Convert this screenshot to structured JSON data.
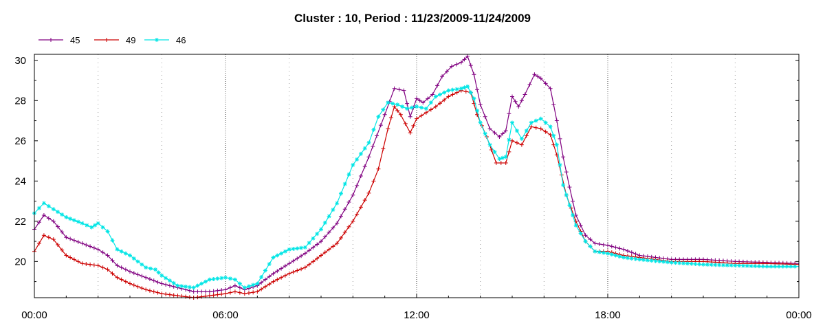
{
  "chart_data": {
    "type": "line",
    "title": "Cluster : 10, Period : 11/23/2009-11/24/2009",
    "xlabel": "",
    "ylabel": "",
    "x_ticks": [
      "00:00",
      "06:00",
      "12:00",
      "18:00",
      "00:00"
    ],
    "y_ticks": [
      "20",
      "22",
      "24",
      "26",
      "28",
      "30"
    ],
    "xlim": [
      0,
      24
    ],
    "ylim": [
      18.2,
      30.3
    ],
    "grid": "vertical dotted lines every 2 hours",
    "legend_position": "top-left",
    "series": [
      {
        "name": "45",
        "color": "#800080",
        "marker": "plus",
        "points": [
          [
            0,
            21.6
          ],
          [
            0.3,
            22.3
          ],
          [
            0.6,
            22
          ],
          [
            1,
            21.2
          ],
          [
            1.5,
            20.9
          ],
          [
            2,
            20.6
          ],
          [
            2.3,
            20.3
          ],
          [
            2.6,
            19.8
          ],
          [
            3,
            19.5
          ],
          [
            3.5,
            19.2
          ],
          [
            4,
            18.9
          ],
          [
            4.5,
            18.7
          ],
          [
            5,
            18.5
          ],
          [
            5.5,
            18.5
          ],
          [
            6,
            18.6
          ],
          [
            6.3,
            18.8
          ],
          [
            6.6,
            18.6
          ],
          [
            7,
            18.8
          ],
          [
            7.5,
            19.4
          ],
          [
            8,
            19.9
          ],
          [
            8.5,
            20.4
          ],
          [
            9,
            21
          ],
          [
            9.5,
            21.9
          ],
          [
            10,
            23.3
          ],
          [
            10.5,
            25.2
          ],
          [
            11,
            27.3
          ],
          [
            11.3,
            28.6
          ],
          [
            11.6,
            28.5
          ],
          [
            11.8,
            27.2
          ],
          [
            12,
            28.1
          ],
          [
            12.2,
            27.9
          ],
          [
            12.5,
            28.3
          ],
          [
            12.8,
            29.2
          ],
          [
            13.1,
            29.7
          ],
          [
            13.4,
            29.9
          ],
          [
            13.6,
            30.2
          ],
          [
            13.8,
            29.3
          ],
          [
            14,
            27.8
          ],
          [
            14.3,
            26.6
          ],
          [
            14.6,
            26.2
          ],
          [
            14.8,
            26.5
          ],
          [
            15,
            28.2
          ],
          [
            15.2,
            27.7
          ],
          [
            15.4,
            28.3
          ],
          [
            15.7,
            29.3
          ],
          [
            15.9,
            29.1
          ],
          [
            16.2,
            28.6
          ],
          [
            16.4,
            27
          ],
          [
            16.6,
            25.2
          ],
          [
            16.8,
            23.7
          ],
          [
            17,
            22.3
          ],
          [
            17.3,
            21.3
          ],
          [
            17.6,
            20.9
          ],
          [
            18,
            20.8
          ],
          [
            18.5,
            20.6
          ],
          [
            19,
            20.3
          ],
          [
            20,
            20.1
          ],
          [
            21,
            20.1
          ],
          [
            22,
            20
          ],
          [
            23,
            19.95
          ],
          [
            24,
            19.9
          ]
        ]
      },
      {
        "name": "49",
        "color": "#cc0000",
        "marker": "plus",
        "points": [
          [
            0,
            20.5
          ],
          [
            0.3,
            21.3
          ],
          [
            0.6,
            21.1
          ],
          [
            1,
            20.3
          ],
          [
            1.5,
            19.9
          ],
          [
            2,
            19.8
          ],
          [
            2.3,
            19.6
          ],
          [
            2.6,
            19.2
          ],
          [
            3,
            18.9
          ],
          [
            3.5,
            18.6
          ],
          [
            4,
            18.4
          ],
          [
            4.5,
            18.3
          ],
          [
            5,
            18.2
          ],
          [
            5.5,
            18.3
          ],
          [
            6,
            18.4
          ],
          [
            6.3,
            18.5
          ],
          [
            6.6,
            18.4
          ],
          [
            7,
            18.5
          ],
          [
            7.5,
            19
          ],
          [
            8,
            19.4
          ],
          [
            8.5,
            19.7
          ],
          [
            9,
            20.3
          ],
          [
            9.5,
            20.9
          ],
          [
            10,
            22
          ],
          [
            10.5,
            23.4
          ],
          [
            10.8,
            24.6
          ],
          [
            11.1,
            26.6
          ],
          [
            11.3,
            27.7
          ],
          [
            11.5,
            27.3
          ],
          [
            11.8,
            26.4
          ],
          [
            12,
            27.1
          ],
          [
            12.3,
            27.4
          ],
          [
            12.6,
            27.7
          ],
          [
            13,
            28.2
          ],
          [
            13.4,
            28.5
          ],
          [
            13.7,
            28.4
          ],
          [
            13.9,
            27.3
          ],
          [
            14.2,
            26.2
          ],
          [
            14.5,
            24.9
          ],
          [
            14.8,
            24.9
          ],
          [
            15,
            26
          ],
          [
            15.3,
            25.8
          ],
          [
            15.6,
            26.7
          ],
          [
            15.9,
            26.6
          ],
          [
            16.2,
            26.3
          ],
          [
            16.4,
            25.3
          ],
          [
            16.7,
            23.3
          ],
          [
            17,
            22
          ],
          [
            17.3,
            21
          ],
          [
            17.6,
            20.5
          ],
          [
            18,
            20.5
          ],
          [
            18.5,
            20.3
          ],
          [
            19,
            20.2
          ],
          [
            20,
            20
          ],
          [
            21,
            20
          ],
          [
            22,
            19.9
          ],
          [
            23,
            19.9
          ],
          [
            24,
            19.85
          ]
        ]
      },
      {
        "name": "46",
        "color": "#00e5e5",
        "marker": "star",
        "points": [
          [
            0,
            22.4
          ],
          [
            0.3,
            22.9
          ],
          [
            0.6,
            22.6
          ],
          [
            1,
            22.2
          ],
          [
            1.5,
            21.9
          ],
          [
            1.8,
            21.7
          ],
          [
            2,
            21.9
          ],
          [
            2.3,
            21.5
          ],
          [
            2.6,
            20.6
          ],
          [
            3,
            20.3
          ],
          [
            3.5,
            19.7
          ],
          [
            3.8,
            19.6
          ],
          [
            4,
            19.3
          ],
          [
            4.5,
            18.8
          ],
          [
            5,
            18.7
          ],
          [
            5.5,
            19.1
          ],
          [
            6,
            19.2
          ],
          [
            6.3,
            19.1
          ],
          [
            6.6,
            18.7
          ],
          [
            7,
            18.9
          ],
          [
            7.5,
            20.2
          ],
          [
            8,
            20.6
          ],
          [
            8.5,
            20.7
          ],
          [
            9,
            21.6
          ],
          [
            9.5,
            22.9
          ],
          [
            10,
            24.8
          ],
          [
            10.5,
            25.9
          ],
          [
            10.8,
            27.2
          ],
          [
            11.1,
            27.9
          ],
          [
            11.4,
            27.8
          ],
          [
            11.7,
            27.6
          ],
          [
            12,
            27.7
          ],
          [
            12.3,
            27.6
          ],
          [
            12.6,
            28.2
          ],
          [
            13,
            28.5
          ],
          [
            13.4,
            28.6
          ],
          [
            13.6,
            28.7
          ],
          [
            13.8,
            28.1
          ],
          [
            14,
            26.9
          ],
          [
            14.3,
            25.8
          ],
          [
            14.6,
            25.1
          ],
          [
            14.8,
            25.2
          ],
          [
            15,
            26.9
          ],
          [
            15.3,
            26.1
          ],
          [
            15.6,
            26.9
          ],
          [
            15.9,
            27.1
          ],
          [
            16.2,
            26.7
          ],
          [
            16.4,
            25.8
          ],
          [
            16.6,
            23.8
          ],
          [
            16.8,
            22.8
          ],
          [
            17,
            21.8
          ],
          [
            17.3,
            21
          ],
          [
            17.6,
            20.5
          ],
          [
            18,
            20.4
          ],
          [
            18.5,
            20.2
          ],
          [
            19,
            20.1
          ],
          [
            20,
            19.95
          ],
          [
            21,
            19.85
          ],
          [
            22,
            19.8
          ],
          [
            23,
            19.75
          ],
          [
            24,
            19.75
          ]
        ]
      }
    ]
  }
}
